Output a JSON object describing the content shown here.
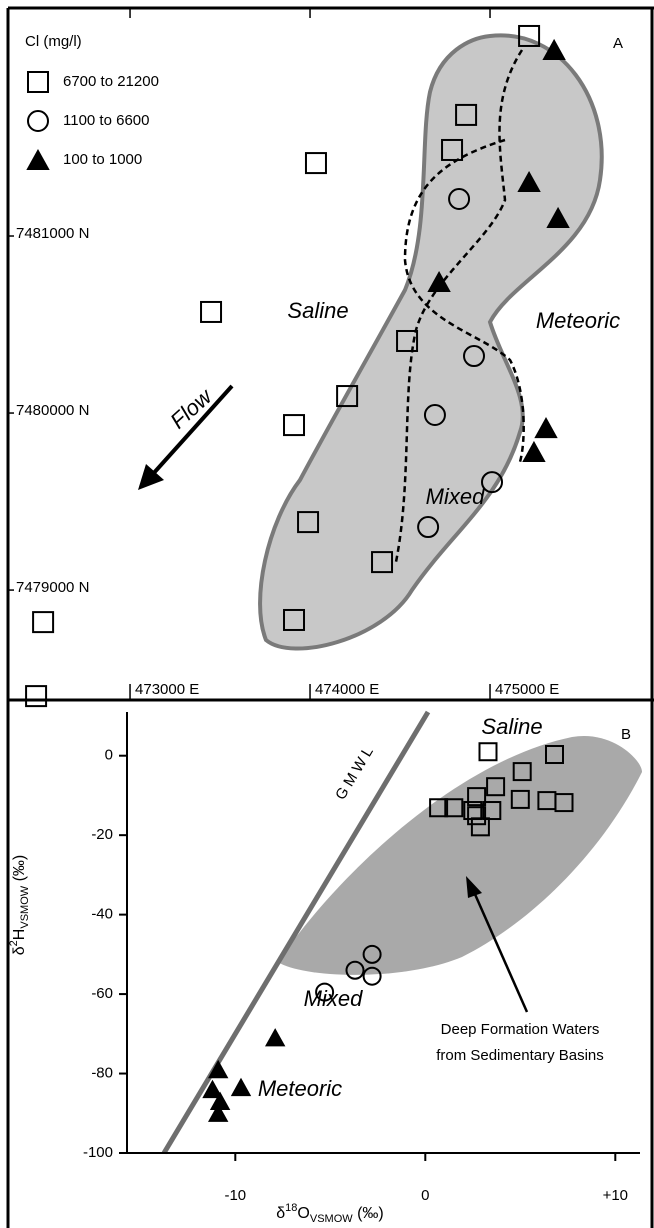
{
  "chart_data": [
    {
      "type": "scatter",
      "panel_label": "A",
      "legend_title": "Cl (mg/l)",
      "legend": "upper left",
      "annotations": [
        "Saline",
        "Meteoric",
        "Mixed",
        "Flow"
      ],
      "xlim": [
        472322,
        475911
      ],
      "ylim": [
        7478379,
        7482288
      ],
      "xticks": [
        {
          "value": 473000,
          "label": "473000 E"
        },
        {
          "value": 474000,
          "label": "474000 E"
        },
        {
          "value": 475000,
          "label": "475000 E"
        }
      ],
      "yticks": [
        {
          "value": 7479000,
          "label": "7479000 N"
        },
        {
          "value": 7480000,
          "label": "7480000 N"
        },
        {
          "value": 7481000,
          "label": "7481000 N"
        }
      ],
      "series": [
        {
          "name": "6700 to 21200",
          "color": "#000000",
          "marker": "square",
          "filled": false,
          "x": [
            475217,
            474867,
            474789,
            474033,
            473450,
            474539,
            474206,
            473911,
            473989,
            474400,
            473911,
            472517,
            472478
          ],
          "values": [
            7482130,
            7481684,
            7481486,
            7481412,
            7480571,
            7480407,
            7480096,
            7479932,
            7479384,
            7479158,
            7478831,
            7478819,
            7478401
          ]
        },
        {
          "name": "1100 to 6600",
          "color": "#000000",
          "marker": "circle",
          "filled": false,
          "x": [
            474828,
            474911,
            474694,
            475011,
            474656
          ],
          "values": [
            7481209,
            7480322,
            7479989,
            7479610,
            7479356
          ]
        },
        {
          "name": "100 to 1000",
          "color": "#000000",
          "marker": "triangle",
          "filled": true,
          "x": [
            475356,
            475217,
            475378,
            474717,
            475311,
            475244
          ],
          "values": [
            7482051,
            7481305,
            7481102,
            7480740,
            7479915,
            7479780
          ]
        }
      ]
    },
    {
      "type": "scatter",
      "panel_label": "B",
      "x_label": [
        "δ",
        "18",
        "O",
        "VSMOW",
        " (‰)"
      ],
      "y_label": [
        "δ",
        "2",
        "H",
        "VSMOW",
        " (‰)"
      ],
      "annotations": [
        "Saline",
        "Mixed",
        "Meteoric",
        "GMWL"
      ],
      "note": [
        "Deep Formation Waters",
        "from Sedimentary Basins"
      ],
      "xlim": [
        -15.7,
        11.3
      ],
      "ylim": [
        -100,
        11
      ],
      "xticks": [
        -10,
        0,
        {
          "value": 10,
          "label": "+10"
        }
      ],
      "yticks": [
        0,
        -20,
        -40,
        -60,
        -80,
        -100
      ],
      "series": [
        {
          "name": "6700 to 21200",
          "color": "#000000",
          "marker": "square",
          "filled": false,
          "x": [
            3.3,
            6.8,
            5.1,
            3.7,
            2.7,
            5.0,
            7.3,
            6.4,
            0.7,
            1.5,
            2.5,
            3.5,
            2.7,
            2.9
          ],
          "values": [
            1,
            0.3,
            -4,
            -7.8,
            -10.3,
            -11,
            -11.8,
            -11.3,
            -13.1,
            -13.1,
            -13.8,
            -13.8,
            -15.1,
            -17.9
          ]
        },
        {
          "name": "1100 to 6600",
          "color": "#000000",
          "marker": "circle",
          "filled": false,
          "x": [
            -5.3,
            -3.7,
            -2.8,
            -2.8
          ],
          "values": [
            -59.5,
            -54,
            -50,
            -55.5
          ]
        },
        {
          "name": "100 to 1000",
          "color": "#000000",
          "marker": "triangle",
          "filled": true,
          "x": [
            -10.9,
            -11.2,
            -10.8,
            -10.9,
            -9.7,
            -7.9
          ],
          "values": [
            -79,
            -84,
            -87,
            -90,
            -83.5,
            -71
          ]
        }
      ]
    }
  ]
}
